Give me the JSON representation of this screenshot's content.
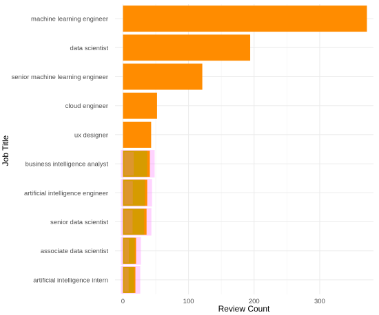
{
  "chart_data": {
    "type": "bar",
    "orientation": "horizontal",
    "title": "",
    "xlabel": "Review Count",
    "ylabel": "Job Title",
    "categories": [
      "machine learning engineer",
      "data scientist",
      "senior machine learning engineer",
      "cloud engineer",
      "ux designer",
      "business intelligence analyst",
      "artificial intelligence engineer",
      "senior data scientist",
      "associate data scientist",
      "artificial intelligence intern"
    ],
    "values": [
      372,
      194,
      121,
      52,
      43,
      41,
      37,
      36,
      20,
      19
    ],
    "xlim": [
      -12,
      382
    ],
    "x_ticks": [
      0,
      100,
      200,
      300
    ],
    "grid": true,
    "legend": "none",
    "colors": {
      "bar": "#ff8c00",
      "bar_overlay": "#c8a000",
      "halo": "#ff80ff",
      "grid_major": "#ebebeb",
      "grid_minor": "#f5f5f5",
      "text": "#4d4d4d"
    }
  }
}
